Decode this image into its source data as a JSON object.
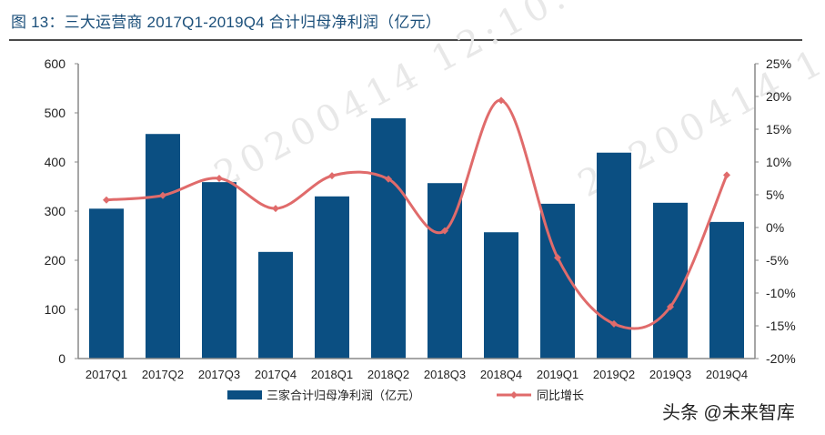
{
  "header": {
    "title": "图  13：三大运营商 2017Q1-2019Q4 合计归母净利润（亿元）"
  },
  "watermark": {
    "text1": "20200414 12:10:",
    "text2": "20200414 1"
  },
  "credit": "头条 @未来智库",
  "colors": {
    "bar": "#0b4f82",
    "line": "#e06b6b",
    "title": "#1b4f7a",
    "axis": "#888888"
  },
  "chart_data": {
    "type": "bar+line",
    "title": "三大运营商 2017Q1-2019Q4 合计归母净利润（亿元）",
    "categories": [
      "2017Q1",
      "2017Q2",
      "2017Q3",
      "2017Q4",
      "2018Q1",
      "2018Q2",
      "2018Q3",
      "2018Q4",
      "2019Q1",
      "2019Q2",
      "2019Q3",
      "2019Q4"
    ],
    "series": [
      {
        "name": "三家合计归母净利润（亿元）",
        "type": "bar",
        "axis": "left",
        "values": [
          305,
          457,
          359,
          217,
          330,
          489,
          357,
          257,
          315,
          419,
          317,
          278
        ]
      },
      {
        "name": "同比增长",
        "type": "line",
        "axis": "right",
        "unit": "%",
        "values": [
          4.2,
          4.9,
          7.5,
          2.9,
          7.9,
          7.4,
          -0.5,
          19.4,
          -4.6,
          -14.7,
          -12.1,
          8.0
        ]
      }
    ],
    "left_axis": {
      "ylim": [
        0,
        600
      ],
      "ticks": [
        "0",
        "100",
        "200",
        "300",
        "400",
        "500",
        "600"
      ]
    },
    "right_axis": {
      "ylim": [
        -20,
        25
      ],
      "ticks": [
        "-20%",
        "-15%",
        "-10%",
        "-5%",
        "0%",
        "5%",
        "10%",
        "15%",
        "20%",
        "25%"
      ]
    },
    "xlabel": "",
    "ylabel": "",
    "grid": false,
    "legend": {
      "position": "bottom",
      "entries": [
        "三家合计归母净利润（亿元）",
        "同比增长"
      ]
    }
  }
}
